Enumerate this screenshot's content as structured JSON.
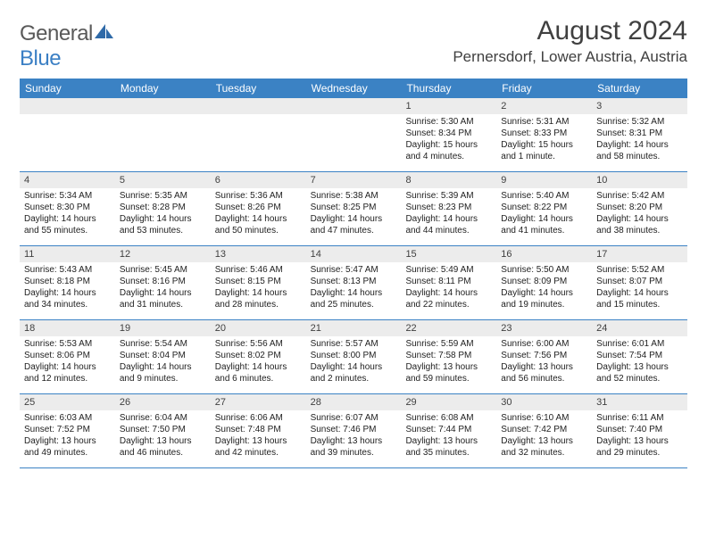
{
  "brand": {
    "part1": "General",
    "part2": "Blue"
  },
  "title": "August 2024",
  "location": "Pernersdorf, Lower Austria, Austria",
  "header_bg": "#3b82c4",
  "dayband_bg": "#ececec",
  "day_headers": [
    "Sunday",
    "Monday",
    "Tuesday",
    "Wednesday",
    "Thursday",
    "Friday",
    "Saturday"
  ],
  "weeks": [
    [
      {
        "n": "",
        "sr": "",
        "ss": "",
        "dl": ""
      },
      {
        "n": "",
        "sr": "",
        "ss": "",
        "dl": ""
      },
      {
        "n": "",
        "sr": "",
        "ss": "",
        "dl": ""
      },
      {
        "n": "",
        "sr": "",
        "ss": "",
        "dl": ""
      },
      {
        "n": "1",
        "sr": "Sunrise: 5:30 AM",
        "ss": "Sunset: 8:34 PM",
        "dl": "Daylight: 15 hours and 4 minutes."
      },
      {
        "n": "2",
        "sr": "Sunrise: 5:31 AM",
        "ss": "Sunset: 8:33 PM",
        "dl": "Daylight: 15 hours and 1 minute."
      },
      {
        "n": "3",
        "sr": "Sunrise: 5:32 AM",
        "ss": "Sunset: 8:31 PM",
        "dl": "Daylight: 14 hours and 58 minutes."
      }
    ],
    [
      {
        "n": "4",
        "sr": "Sunrise: 5:34 AM",
        "ss": "Sunset: 8:30 PM",
        "dl": "Daylight: 14 hours and 55 minutes."
      },
      {
        "n": "5",
        "sr": "Sunrise: 5:35 AM",
        "ss": "Sunset: 8:28 PM",
        "dl": "Daylight: 14 hours and 53 minutes."
      },
      {
        "n": "6",
        "sr": "Sunrise: 5:36 AM",
        "ss": "Sunset: 8:26 PM",
        "dl": "Daylight: 14 hours and 50 minutes."
      },
      {
        "n": "7",
        "sr": "Sunrise: 5:38 AM",
        "ss": "Sunset: 8:25 PM",
        "dl": "Daylight: 14 hours and 47 minutes."
      },
      {
        "n": "8",
        "sr": "Sunrise: 5:39 AM",
        "ss": "Sunset: 8:23 PM",
        "dl": "Daylight: 14 hours and 44 minutes."
      },
      {
        "n": "9",
        "sr": "Sunrise: 5:40 AM",
        "ss": "Sunset: 8:22 PM",
        "dl": "Daylight: 14 hours and 41 minutes."
      },
      {
        "n": "10",
        "sr": "Sunrise: 5:42 AM",
        "ss": "Sunset: 8:20 PM",
        "dl": "Daylight: 14 hours and 38 minutes."
      }
    ],
    [
      {
        "n": "11",
        "sr": "Sunrise: 5:43 AM",
        "ss": "Sunset: 8:18 PM",
        "dl": "Daylight: 14 hours and 34 minutes."
      },
      {
        "n": "12",
        "sr": "Sunrise: 5:45 AM",
        "ss": "Sunset: 8:16 PM",
        "dl": "Daylight: 14 hours and 31 minutes."
      },
      {
        "n": "13",
        "sr": "Sunrise: 5:46 AM",
        "ss": "Sunset: 8:15 PM",
        "dl": "Daylight: 14 hours and 28 minutes."
      },
      {
        "n": "14",
        "sr": "Sunrise: 5:47 AM",
        "ss": "Sunset: 8:13 PM",
        "dl": "Daylight: 14 hours and 25 minutes."
      },
      {
        "n": "15",
        "sr": "Sunrise: 5:49 AM",
        "ss": "Sunset: 8:11 PM",
        "dl": "Daylight: 14 hours and 22 minutes."
      },
      {
        "n": "16",
        "sr": "Sunrise: 5:50 AM",
        "ss": "Sunset: 8:09 PM",
        "dl": "Daylight: 14 hours and 19 minutes."
      },
      {
        "n": "17",
        "sr": "Sunrise: 5:52 AM",
        "ss": "Sunset: 8:07 PM",
        "dl": "Daylight: 14 hours and 15 minutes."
      }
    ],
    [
      {
        "n": "18",
        "sr": "Sunrise: 5:53 AM",
        "ss": "Sunset: 8:06 PM",
        "dl": "Daylight: 14 hours and 12 minutes."
      },
      {
        "n": "19",
        "sr": "Sunrise: 5:54 AM",
        "ss": "Sunset: 8:04 PM",
        "dl": "Daylight: 14 hours and 9 minutes."
      },
      {
        "n": "20",
        "sr": "Sunrise: 5:56 AM",
        "ss": "Sunset: 8:02 PM",
        "dl": "Daylight: 14 hours and 6 minutes."
      },
      {
        "n": "21",
        "sr": "Sunrise: 5:57 AM",
        "ss": "Sunset: 8:00 PM",
        "dl": "Daylight: 14 hours and 2 minutes."
      },
      {
        "n": "22",
        "sr": "Sunrise: 5:59 AM",
        "ss": "Sunset: 7:58 PM",
        "dl": "Daylight: 13 hours and 59 minutes."
      },
      {
        "n": "23",
        "sr": "Sunrise: 6:00 AM",
        "ss": "Sunset: 7:56 PM",
        "dl": "Daylight: 13 hours and 56 minutes."
      },
      {
        "n": "24",
        "sr": "Sunrise: 6:01 AM",
        "ss": "Sunset: 7:54 PM",
        "dl": "Daylight: 13 hours and 52 minutes."
      }
    ],
    [
      {
        "n": "25",
        "sr": "Sunrise: 6:03 AM",
        "ss": "Sunset: 7:52 PM",
        "dl": "Daylight: 13 hours and 49 minutes."
      },
      {
        "n": "26",
        "sr": "Sunrise: 6:04 AM",
        "ss": "Sunset: 7:50 PM",
        "dl": "Daylight: 13 hours and 46 minutes."
      },
      {
        "n": "27",
        "sr": "Sunrise: 6:06 AM",
        "ss": "Sunset: 7:48 PM",
        "dl": "Daylight: 13 hours and 42 minutes."
      },
      {
        "n": "28",
        "sr": "Sunrise: 6:07 AM",
        "ss": "Sunset: 7:46 PM",
        "dl": "Daylight: 13 hours and 39 minutes."
      },
      {
        "n": "29",
        "sr": "Sunrise: 6:08 AM",
        "ss": "Sunset: 7:44 PM",
        "dl": "Daylight: 13 hours and 35 minutes."
      },
      {
        "n": "30",
        "sr": "Sunrise: 6:10 AM",
        "ss": "Sunset: 7:42 PM",
        "dl": "Daylight: 13 hours and 32 minutes."
      },
      {
        "n": "31",
        "sr": "Sunrise: 6:11 AM",
        "ss": "Sunset: 7:40 PM",
        "dl": "Daylight: 13 hours and 29 minutes."
      }
    ]
  ]
}
